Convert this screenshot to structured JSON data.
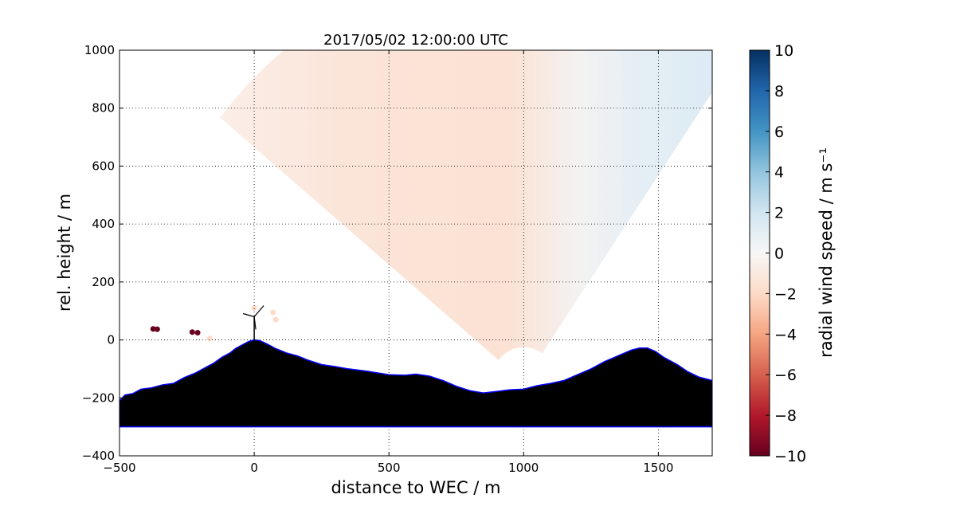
{
  "chart_data": {
    "type": "heatmap",
    "title": "2017/05/02 12:00:00 UTC",
    "xlabel": "distance to WEC / m",
    "ylabel": "rel. height / m",
    "xlim": [
      -500,
      1700
    ],
    "ylim": [
      -400,
      1000
    ],
    "xticks": [
      -500,
      0,
      500,
      1000,
      1500
    ],
    "yticks": [
      -400,
      -200,
      0,
      200,
      400,
      600,
      800,
      1000
    ],
    "grid": true,
    "grid_style": "dotted",
    "colorbar": {
      "label": "radial wind speed / m s⁻¹",
      "min": -10,
      "max": 10,
      "ticks": [
        -10,
        -8,
        -6,
        -4,
        -2,
        0,
        2,
        4,
        6,
        8,
        10
      ],
      "colormap": "RdBu",
      "colors": [
        "#67001f",
        "#b2182b",
        "#d6604d",
        "#f4a582",
        "#fddbc7",
        "#f7f7f7",
        "#d1e5f0",
        "#92c5de",
        "#4393c3",
        "#2166ac",
        "#053061"
      ]
    },
    "scan_sector": {
      "origin": [
        1000,
        -145
      ],
      "start_radius": 120,
      "end_radius": 1450,
      "start_angle_deg": 55,
      "end_angle_deg": 141
    },
    "field_description": "mostly near-zero radial wind; weak negative (-1 to -2) over x 0-900, weak positive (+1) for x > 1000",
    "terrain": {
      "fill": "#000000",
      "edge": "#0000ff",
      "base": -300,
      "profile": [
        [
          -500,
          -210
        ],
        [
          -480,
          -190
        ],
        [
          -450,
          -185
        ],
        [
          -420,
          -170
        ],
        [
          -380,
          -165
        ],
        [
          -340,
          -155
        ],
        [
          -300,
          -150
        ],
        [
          -260,
          -130
        ],
        [
          -220,
          -115
        ],
        [
          -190,
          -100
        ],
        [
          -150,
          -80
        ],
        [
          -120,
          -60
        ],
        [
          -90,
          -45
        ],
        [
          -70,
          -30
        ],
        [
          -40,
          -15
        ],
        [
          -20,
          -5
        ],
        [
          0,
          0
        ],
        [
          20,
          -2
        ],
        [
          50,
          -15
        ],
        [
          80,
          -30
        ],
        [
          120,
          -45
        ],
        [
          160,
          -55
        ],
        [
          200,
          -70
        ],
        [
          250,
          -85
        ],
        [
          300,
          -92
        ],
        [
          350,
          -100
        ],
        [
          420,
          -108
        ],
        [
          500,
          -120
        ],
        [
          560,
          -122
        ],
        [
          600,
          -118
        ],
        [
          650,
          -125
        ],
        [
          700,
          -140
        ],
        [
          750,
          -160
        ],
        [
          800,
          -175
        ],
        [
          850,
          -183
        ],
        [
          900,
          -178
        ],
        [
          950,
          -172
        ],
        [
          1000,
          -170
        ],
        [
          1050,
          -158
        ],
        [
          1100,
          -150
        ],
        [
          1150,
          -140
        ],
        [
          1200,
          -120
        ],
        [
          1250,
          -100
        ],
        [
          1300,
          -75
        ],
        [
          1350,
          -55
        ],
        [
          1400,
          -35
        ],
        [
          1430,
          -28
        ],
        [
          1460,
          -28
        ],
        [
          1490,
          -40
        ],
        [
          1520,
          -60
        ],
        [
          1570,
          -85
        ],
        [
          1610,
          -110
        ],
        [
          1650,
          -128
        ],
        [
          1700,
          -140
        ]
      ]
    },
    "turbine": {
      "x": 0,
      "hub_height": 80
    },
    "outlier_points": [
      {
        "x": -375,
        "y": 38,
        "value": -10
      },
      {
        "x": -360,
        "y": 37,
        "value": -10
      },
      {
        "x": -230,
        "y": 27,
        "value": -10
      },
      {
        "x": -210,
        "y": 25,
        "value": -10
      },
      {
        "x": -165,
        "y": 5,
        "value": -3
      },
      {
        "x": 0,
        "y": 110,
        "value": -3
      },
      {
        "x": 70,
        "y": 95,
        "value": -2
      },
      {
        "x": 80,
        "y": 70,
        "value": -2
      }
    ]
  }
}
